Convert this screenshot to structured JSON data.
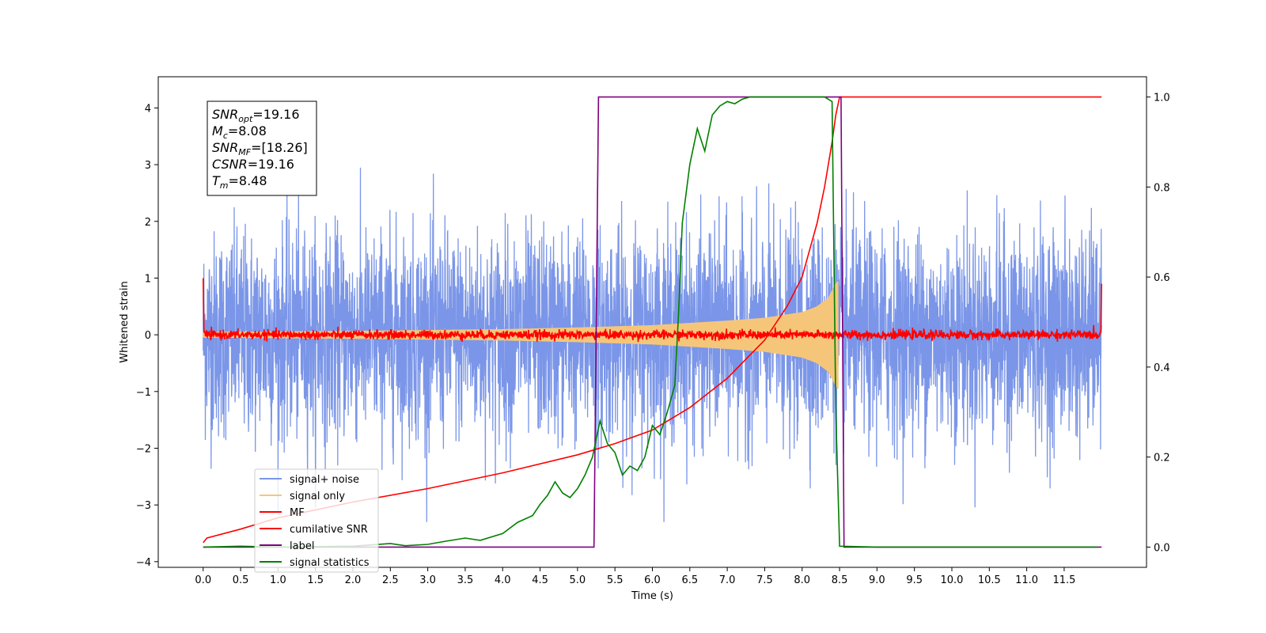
{
  "chart_data": {
    "type": "line",
    "xlabel": "Time (s)",
    "ylabel_left": "Whitened strain",
    "ylabel_right": "",
    "xlim": [
      -0.6,
      12.6
    ],
    "ylim_left": [
      -4.1,
      4.55
    ],
    "ylim_right": [
      -0.045,
      1.045
    ],
    "xticks": [
      0.0,
      0.5,
      1.0,
      1.5,
      2.0,
      2.5,
      3.0,
      3.5,
      4.0,
      4.5,
      5.0,
      5.5,
      6.0,
      6.5,
      7.0,
      7.5,
      8.0,
      8.5,
      9.0,
      9.5,
      10.0,
      10.5,
      11.0,
      11.5
    ],
    "xtick_labels": [
      "0.0",
      "0.5",
      "1.0",
      "1.5",
      "2.0",
      "2.5",
      "3.0",
      "3.5",
      "4.0",
      "4.5",
      "5.0",
      "5.5",
      "6.0",
      "6.5",
      "7.0",
      "7.5",
      "8.0",
      "8.5",
      "9.0",
      "9.5",
      "10.0",
      "10.5",
      "11.0",
      "11.5"
    ],
    "yticks_left": [
      -4,
      -3,
      -2,
      -1,
      0,
      1,
      2,
      3,
      4
    ],
    "ytick_labels_left": [
      "−4",
      "−3",
      "−2",
      "−1",
      "0",
      "1",
      "2",
      "3",
      "4"
    ],
    "yticks_right": [
      0.0,
      0.2,
      0.4,
      0.6,
      0.8,
      1.0
    ],
    "ytick_labels_right": [
      "0.0",
      "0.2",
      "0.4",
      "0.6",
      "0.8",
      "1.0"
    ],
    "grid": false,
    "legend_position": "lower-left",
    "series": [
      {
        "name": "signal+ noise",
        "color": "#7b96e8",
        "axis": "left",
        "kind": "noise",
        "x_range": [
          0,
          12
        ],
        "amplitude": "approx ±2.5, spikes to ±3.3"
      },
      {
        "name": "signal only",
        "color": "#f5c67a",
        "axis": "left",
        "kind": "chirp",
        "x_range": [
          0,
          8.48
        ],
        "envelope": {
          "x": [
            0,
            2,
            4,
            5,
            6,
            7,
            7.5,
            8,
            8.2,
            8.35,
            8.45,
            8.48
          ],
          "y": [
            0.05,
            0.07,
            0.1,
            0.13,
            0.17,
            0.25,
            0.3,
            0.4,
            0.5,
            0.65,
            0.9,
            0.95
          ]
        }
      },
      {
        "name": "MF",
        "color": "#ff0000",
        "axis": "left",
        "kind": "noise",
        "x_range": [
          0,
          12
        ],
        "amplitude": "approx ±0.1"
      },
      {
        "name": "cumilative SNR",
        "color": "#ff0000",
        "axis": "right",
        "x": [
          0,
          0.05,
          0.5,
          1,
          2,
          3,
          4,
          5,
          5.5,
          6,
          6.5,
          7,
          7.5,
          7.8,
          8.0,
          8.2,
          8.3,
          8.4,
          8.45,
          8.5,
          9,
          10,
          11,
          12
        ],
        "y": [
          0.01,
          0.02,
          0.04,
          0.065,
          0.1,
          0.13,
          0.165,
          0.205,
          0.23,
          0.26,
          0.31,
          0.375,
          0.46,
          0.535,
          0.6,
          0.72,
          0.8,
          0.9,
          0.96,
          1.0,
          1.0,
          1.0,
          1.0,
          1.0
        ]
      },
      {
        "name": "label",
        "color": "#800080",
        "axis": "right",
        "x": [
          0,
          5.22,
          5.28,
          8.5,
          8.52,
          8.56,
          12
        ],
        "y": [
          0,
          0,
          1,
          1,
          1,
          0,
          0
        ]
      },
      {
        "name": "signal statistics",
        "color": "#008000",
        "axis": "right",
        "x": [
          0,
          0.5,
          1,
          1.5,
          2,
          2.5,
          2.7,
          3,
          3.2,
          3.5,
          3.7,
          4,
          4.2,
          4.4,
          4.5,
          4.6,
          4.7,
          4.8,
          4.9,
          5.0,
          5.1,
          5.2,
          5.3,
          5.4,
          5.5,
          5.6,
          5.7,
          5.8,
          5.9,
          6.0,
          6.1,
          6.2,
          6.3,
          6.35,
          6.4,
          6.5,
          6.6,
          6.7,
          6.8,
          6.9,
          7.0,
          7.1,
          7.2,
          7.3,
          7.5,
          8.0,
          8.3,
          8.4,
          8.45,
          8.5,
          9,
          10,
          11,
          11.95
        ],
        "y": [
          0,
          0.002,
          0,
          0.001,
          0.002,
          0.008,
          0.003,
          0.006,
          0.012,
          0.02,
          0.015,
          0.03,
          0.055,
          0.07,
          0.095,
          0.115,
          0.145,
          0.12,
          0.11,
          0.13,
          0.16,
          0.2,
          0.28,
          0.23,
          0.21,
          0.16,
          0.18,
          0.17,
          0.2,
          0.27,
          0.25,
          0.3,
          0.36,
          0.52,
          0.72,
          0.85,
          0.93,
          0.88,
          0.96,
          0.98,
          0.99,
          0.985,
          0.995,
          1.0,
          1.0,
          1.0,
          1.0,
          0.99,
          0.3,
          0.002,
          0,
          0,
          0,
          0
        ]
      }
    ],
    "annotation": [
      {
        "main": "SNR",
        "sub": "opt",
        "value": "=19.16"
      },
      {
        "main": "M",
        "sub": "c",
        "value": "=8.08"
      },
      {
        "main": "SNR",
        "sub": "MF",
        "value": "=[18.26]"
      },
      {
        "main": "CSNR",
        "sub": "",
        "value": "=19.16"
      },
      {
        "main": "T",
        "sub": "m",
        "value": "=8.48"
      }
    ]
  }
}
